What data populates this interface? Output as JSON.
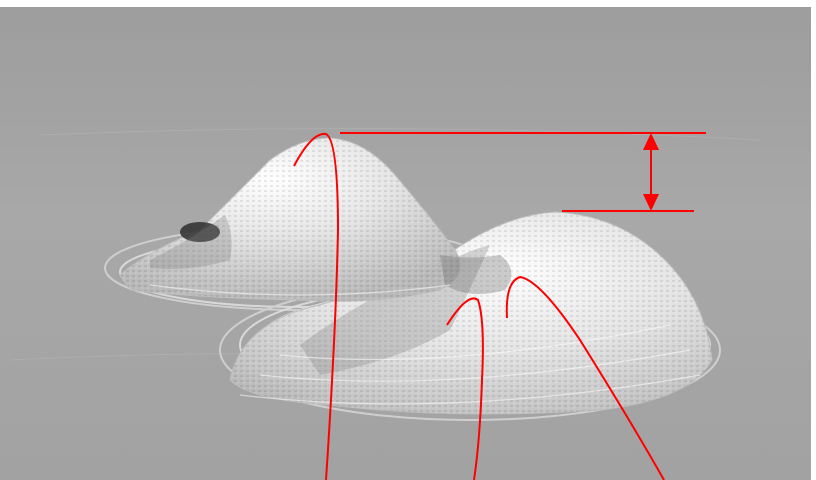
{
  "scene": {
    "background_color": "#a3a3a3",
    "surface_color": "#e8e8e8",
    "annotation_color": "#ff0000"
  }
}
